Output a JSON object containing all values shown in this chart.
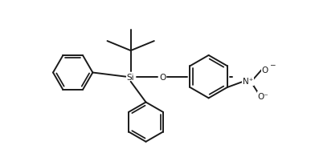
{
  "background": "#ffffff",
  "line_color": "#1a1a1a",
  "line_width": 1.4,
  "font_size_labels": 7.5,
  "figsize": [
    3.87,
    2.07
  ],
  "dpi": 100,
  "xlim": [
    0,
    11
  ],
  "ylim": [
    0,
    6
  ]
}
